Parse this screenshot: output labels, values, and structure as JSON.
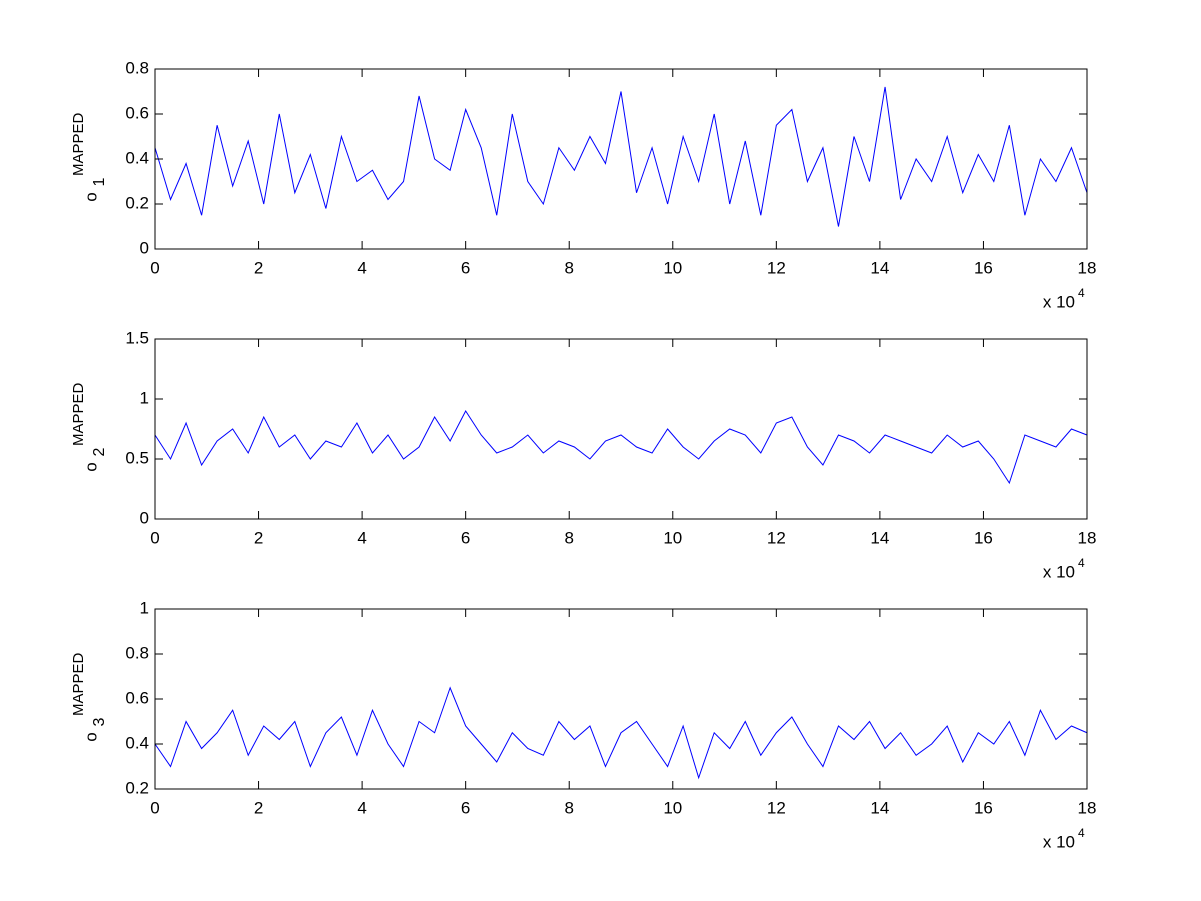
{
  "chart_data": [
    {
      "type": "line",
      "ylabel": {
        "base": "o",
        "sub": "1",
        "sup": "MAPPED"
      },
      "x_multiplier": {
        "base": "x 10",
        "exp": "4"
      },
      "x": [
        0,
        0.3,
        0.6,
        0.9,
        1.2,
        1.5,
        1.8,
        2.1,
        2.4,
        2.7,
        3,
        3.3,
        3.6,
        3.9,
        4.2,
        4.5,
        4.8,
        5.1,
        5.4,
        5.7,
        6,
        6.3,
        6.6,
        6.9,
        7.2,
        7.5,
        7.8,
        8.1,
        8.4,
        8.7,
        9,
        9.3,
        9.6,
        9.9,
        10.2,
        10.5,
        10.8,
        11.1,
        11.4,
        11.7,
        12,
        12.3,
        12.6,
        12.9,
        13.2,
        13.5,
        13.8,
        14.1,
        14.4,
        14.7,
        15,
        15.3,
        15.6,
        15.9,
        16.2,
        16.5,
        16.8,
        17.1,
        17.4,
        17.7,
        18
      ],
      "series": [
        {
          "color": "#0000ff",
          "values": [
            0.45,
            0.22,
            0.38,
            0.15,
            0.55,
            0.28,
            0.48,
            0.2,
            0.6,
            0.25,
            0.42,
            0.18,
            0.5,
            0.3,
            0.35,
            0.22,
            0.3,
            0.68,
            0.4,
            0.35,
            0.62,
            0.45,
            0.15,
            0.6,
            0.3,
            0.2,
            0.45,
            0.35,
            0.5,
            0.38,
            0.7,
            0.25,
            0.45,
            0.2,
            0.5,
            0.3,
            0.6,
            0.2,
            0.48,
            0.15,
            0.55,
            0.62,
            0.3,
            0.45,
            0.1,
            0.5,
            0.3,
            0.72,
            0.22,
            0.4,
            0.3,
            0.5,
            0.25,
            0.42,
            0.3,
            0.55,
            0.15,
            0.4,
            0.3,
            0.45,
            0.25
          ]
        }
      ],
      "xlim": [
        0,
        18
      ],
      "xticks": [
        0,
        2,
        4,
        6,
        8,
        10,
        12,
        14,
        16,
        18
      ],
      "ylim": [
        0,
        0.8
      ],
      "yticks": [
        0,
        0.2,
        0.4,
        0.6,
        0.8
      ],
      "grid": false
    },
    {
      "type": "line",
      "ylabel": {
        "base": "o",
        "sub": "2",
        "sup": "MAPPED"
      },
      "x_multiplier": {
        "base": "x 10",
        "exp": "4"
      },
      "x": [
        0,
        0.3,
        0.6,
        0.9,
        1.2,
        1.5,
        1.8,
        2.1,
        2.4,
        2.7,
        3,
        3.3,
        3.6,
        3.9,
        4.2,
        4.5,
        4.8,
        5.1,
        5.4,
        5.7,
        6,
        6.3,
        6.6,
        6.9,
        7.2,
        7.5,
        7.8,
        8.1,
        8.4,
        8.7,
        9,
        9.3,
        9.6,
        9.9,
        10.2,
        10.5,
        10.8,
        11.1,
        11.4,
        11.7,
        12,
        12.3,
        12.6,
        12.9,
        13.2,
        13.5,
        13.8,
        14.1,
        14.4,
        14.7,
        15,
        15.3,
        15.6,
        15.9,
        16.2,
        16.5,
        16.8,
        17.1,
        17.4,
        17.7,
        18
      ],
      "series": [
        {
          "color": "#0000ff",
          "values": [
            0.7,
            0.5,
            0.8,
            0.45,
            0.65,
            0.75,
            0.55,
            0.85,
            0.6,
            0.7,
            0.5,
            0.65,
            0.6,
            0.8,
            0.55,
            0.7,
            0.5,
            0.6,
            0.85,
            0.65,
            0.9,
            0.7,
            0.55,
            0.6,
            0.7,
            0.55,
            0.65,
            0.6,
            0.5,
            0.65,
            0.7,
            0.6,
            0.55,
            0.75,
            0.6,
            0.5,
            0.65,
            0.75,
            0.7,
            0.55,
            0.8,
            0.85,
            0.6,
            0.45,
            0.7,
            0.65,
            0.55,
            0.7,
            0.65,
            0.6,
            0.55,
            0.7,
            0.6,
            0.65,
            0.5,
            0.3,
            0.7,
            0.65,
            0.6,
            0.75,
            0.7
          ]
        }
      ],
      "xlim": [
        0,
        18
      ],
      "xticks": [
        0,
        2,
        4,
        6,
        8,
        10,
        12,
        14,
        16,
        18
      ],
      "ylim": [
        0,
        1.5
      ],
      "yticks": [
        0,
        0.5,
        1,
        1.5
      ],
      "grid": false
    },
    {
      "type": "line",
      "ylabel": {
        "base": "o",
        "sub": "3",
        "sup": "MAPPED"
      },
      "x_multiplier": {
        "base": "x 10",
        "exp": "4"
      },
      "x": [
        0,
        0.3,
        0.6,
        0.9,
        1.2,
        1.5,
        1.8,
        2.1,
        2.4,
        2.7,
        3,
        3.3,
        3.6,
        3.9,
        4.2,
        4.5,
        4.8,
        5.1,
        5.4,
        5.7,
        6,
        6.3,
        6.6,
        6.9,
        7.2,
        7.5,
        7.8,
        8.1,
        8.4,
        8.7,
        9,
        9.3,
        9.6,
        9.9,
        10.2,
        10.5,
        10.8,
        11.1,
        11.4,
        11.7,
        12,
        12.3,
        12.6,
        12.9,
        13.2,
        13.5,
        13.8,
        14.1,
        14.4,
        14.7,
        15,
        15.3,
        15.6,
        15.9,
        16.2,
        16.5,
        16.8,
        17.1,
        17.4,
        17.7,
        18
      ],
      "series": [
        {
          "color": "#0000ff",
          "values": [
            0.4,
            0.3,
            0.5,
            0.38,
            0.45,
            0.55,
            0.35,
            0.48,
            0.42,
            0.5,
            0.3,
            0.45,
            0.52,
            0.35,
            0.55,
            0.4,
            0.3,
            0.5,
            0.45,
            0.65,
            0.48,
            0.4,
            0.32,
            0.45,
            0.38,
            0.35,
            0.5,
            0.42,
            0.48,
            0.3,
            0.45,
            0.5,
            0.4,
            0.3,
            0.48,
            0.25,
            0.45,
            0.38,
            0.5,
            0.35,
            0.45,
            0.52,
            0.4,
            0.3,
            0.48,
            0.42,
            0.5,
            0.38,
            0.45,
            0.35,
            0.4,
            0.48,
            0.32,
            0.45,
            0.4,
            0.5,
            0.35,
            0.55,
            0.42,
            0.48,
            0.45
          ]
        }
      ],
      "xlim": [
        0,
        18
      ],
      "xticks": [
        0,
        2,
        4,
        6,
        8,
        10,
        12,
        14,
        16,
        18
      ],
      "ylim": [
        0.2,
        1
      ],
      "yticks": [
        0.2,
        0.4,
        0.6,
        0.8,
        1
      ],
      "grid": false
    }
  ]
}
